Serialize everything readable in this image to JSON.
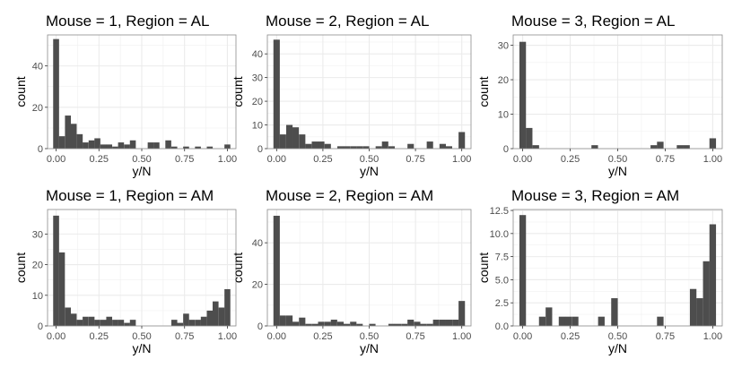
{
  "chart_data": [
    {
      "type": "bar",
      "title": "Mouse = 1, Region = AL",
      "xlabel": "y/N",
      "ylabel": "count",
      "xlim": [
        -0.05,
        1.05
      ],
      "ylim": [
        0,
        55
      ],
      "xticks": [
        0,
        0.25,
        0.5,
        0.75,
        1
      ],
      "xtick_labels": [
        "0.00",
        "0.25",
        "0.50",
        "0.75",
        "1.00"
      ],
      "yticks": [
        0,
        20,
        40
      ],
      "bin_width": 0.0345,
      "bins": [
        [
          0.0,
          53
        ],
        [
          0.034,
          6
        ],
        [
          0.069,
          16
        ],
        [
          0.103,
          12
        ],
        [
          0.138,
          7
        ],
        [
          0.172,
          3
        ],
        [
          0.207,
          4
        ],
        [
          0.241,
          5
        ],
        [
          0.276,
          2
        ],
        [
          0.31,
          2
        ],
        [
          0.345,
          1
        ],
        [
          0.379,
          3
        ],
        [
          0.414,
          2
        ],
        [
          0.448,
          4
        ],
        [
          0.552,
          3
        ],
        [
          0.586,
          3
        ],
        [
          0.655,
          4
        ],
        [
          0.69,
          1
        ],
        [
          0.759,
          1
        ],
        [
          0.828,
          1
        ],
        [
          0.897,
          1
        ],
        [
          1.0,
          2
        ]
      ]
    },
    {
      "type": "bar",
      "title": "Mouse = 2, Region = AL",
      "xlabel": "y/N",
      "ylabel": "count",
      "xlim": [
        -0.05,
        1.05
      ],
      "ylim": [
        0,
        48
      ],
      "xticks": [
        0,
        0.25,
        0.5,
        0.75,
        1
      ],
      "xtick_labels": [
        "0.00",
        "0.25",
        "0.50",
        "0.75",
        "1.00"
      ],
      "yticks": [
        0,
        10,
        20,
        30,
        40
      ],
      "bin_width": 0.0345,
      "bins": [
        [
          0.0,
          46
        ],
        [
          0.034,
          6
        ],
        [
          0.069,
          10
        ],
        [
          0.103,
          9
        ],
        [
          0.138,
          6
        ],
        [
          0.172,
          2
        ],
        [
          0.207,
          3
        ],
        [
          0.241,
          3
        ],
        [
          0.276,
          2
        ],
        [
          0.345,
          1
        ],
        [
          0.379,
          1
        ],
        [
          0.414,
          1
        ],
        [
          0.448,
          1
        ],
        [
          0.483,
          1
        ],
        [
          0.552,
          1
        ],
        [
          0.586,
          3
        ],
        [
          0.621,
          1
        ],
        [
          0.724,
          2
        ],
        [
          0.828,
          3
        ],
        [
          0.897,
          2
        ],
        [
          0.931,
          1
        ],
        [
          1.0,
          7
        ]
      ]
    },
    {
      "type": "bar",
      "title": "Mouse = 3, Region = AL",
      "xlabel": "y/N",
      "ylabel": "count",
      "xlim": [
        -0.05,
        1.05
      ],
      "ylim": [
        0,
        33
      ],
      "xticks": [
        0,
        0.25,
        0.5,
        0.75,
        1
      ],
      "xtick_labels": [
        "0.00",
        "0.25",
        "0.50",
        "0.75",
        "1.00"
      ],
      "yticks": [
        0,
        10,
        20,
        30
      ],
      "bin_width": 0.0345,
      "bins": [
        [
          0.0,
          31
        ],
        [
          0.034,
          6
        ],
        [
          0.069,
          1
        ],
        [
          0.379,
          1
        ],
        [
          0.69,
          1
        ],
        [
          0.724,
          2
        ],
        [
          0.828,
          1
        ],
        [
          0.862,
          1
        ],
        [
          1.0,
          3
        ]
      ]
    },
    {
      "type": "bar",
      "title": "Mouse = 1, Region = AM",
      "xlabel": "y/N",
      "ylabel": "count",
      "xlim": [
        -0.05,
        1.05
      ],
      "ylim": [
        0,
        38
      ],
      "xticks": [
        0,
        0.25,
        0.5,
        0.75,
        1
      ],
      "xtick_labels": [
        "0.00",
        "0.25",
        "0.50",
        "0.75",
        "1.00"
      ],
      "yticks": [
        0,
        10,
        20,
        30
      ],
      "bin_width": 0.0345,
      "bins": [
        [
          0.0,
          36
        ],
        [
          0.034,
          24
        ],
        [
          0.069,
          6
        ],
        [
          0.103,
          4
        ],
        [
          0.138,
          2
        ],
        [
          0.172,
          3
        ],
        [
          0.207,
          3
        ],
        [
          0.241,
          2
        ],
        [
          0.276,
          2
        ],
        [
          0.31,
          3
        ],
        [
          0.345,
          2
        ],
        [
          0.379,
          2
        ],
        [
          0.414,
          1
        ],
        [
          0.448,
          2
        ],
        [
          0.69,
          2
        ],
        [
          0.724,
          1
        ],
        [
          0.759,
          4
        ],
        [
          0.793,
          2
        ],
        [
          0.828,
          2
        ],
        [
          0.862,
          3
        ],
        [
          0.897,
          5
        ],
        [
          0.931,
          8
        ],
        [
          0.966,
          6
        ],
        [
          1.0,
          12
        ]
      ]
    },
    {
      "type": "bar",
      "title": "Mouse = 2, Region = AM",
      "xlabel": "y/N",
      "ylabel": "count",
      "xlim": [
        -0.05,
        1.05
      ],
      "ylim": [
        0,
        56
      ],
      "xticks": [
        0,
        0.25,
        0.5,
        0.75,
        1
      ],
      "xtick_labels": [
        "0.00",
        "0.25",
        "0.50",
        "0.75",
        "1.00"
      ],
      "yticks": [
        0,
        20,
        40
      ],
      "bin_width": 0.0345,
      "bins": [
        [
          0.0,
          53
        ],
        [
          0.034,
          5
        ],
        [
          0.069,
          5
        ],
        [
          0.103,
          2
        ],
        [
          0.138,
          4
        ],
        [
          0.172,
          1
        ],
        [
          0.207,
          1
        ],
        [
          0.241,
          2
        ],
        [
          0.276,
          2
        ],
        [
          0.31,
          3
        ],
        [
          0.345,
          2
        ],
        [
          0.379,
          1
        ],
        [
          0.414,
          2
        ],
        [
          0.448,
          1
        ],
        [
          0.517,
          1
        ],
        [
          0.621,
          1
        ],
        [
          0.655,
          1
        ],
        [
          0.69,
          1
        ],
        [
          0.724,
          3
        ],
        [
          0.759,
          2
        ],
        [
          0.793,
          1
        ],
        [
          0.828,
          1
        ],
        [
          0.862,
          3
        ],
        [
          0.897,
          3
        ],
        [
          0.931,
          3
        ],
        [
          0.966,
          3
        ],
        [
          1.0,
          12
        ]
      ]
    },
    {
      "type": "bar",
      "title": "Mouse = 3, Region = AM",
      "xlabel": "y/N",
      "ylabel": "count",
      "xlim": [
        -0.05,
        1.05
      ],
      "ylim": [
        0,
        12.6
      ],
      "xticks": [
        0,
        0.25,
        0.5,
        0.75,
        1
      ],
      "xtick_labels": [
        "0.00",
        "0.25",
        "0.50",
        "0.75",
        "1.00"
      ],
      "yticks": [
        0,
        2.5,
        5,
        7.5,
        10,
        12.5
      ],
      "ytick_labels": [
        "0.0",
        "2.5",
        "5.0",
        "7.5",
        "10.0",
        "12.5"
      ],
      "bin_width": 0.0345,
      "bins": [
        [
          0.0,
          12
        ],
        [
          0.103,
          1
        ],
        [
          0.138,
          2
        ],
        [
          0.172,
          0
        ],
        [
          0.207,
          1
        ],
        [
          0.241,
          1
        ],
        [
          0.276,
          1
        ],
        [
          0.414,
          1
        ],
        [
          0.483,
          3
        ],
        [
          0.724,
          1
        ],
        [
          0.897,
          4
        ],
        [
          0.931,
          3
        ],
        [
          0.966,
          7
        ],
        [
          1.0,
          11
        ]
      ]
    }
  ]
}
